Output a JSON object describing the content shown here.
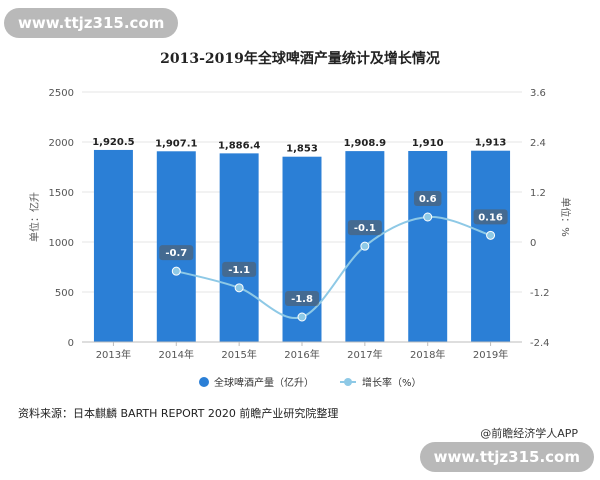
{
  "watermark": {
    "top_text": "www.ttjz315.com",
    "bottom_text": "www.ttjz315.com"
  },
  "footer": {
    "source": "资料来源：日本麒麟 BARTH REPORT 2020 前瞻产业研究院整理",
    "credit": "@前瞻经济学人APP"
  },
  "colors": {
    "bar": "#2b7fd6",
    "line": "#8ec9e6",
    "grid": "#e6e6e6",
    "text": "#555555"
  },
  "chart_data": {
    "type": "bar",
    "title": "2013-2019年全球啤酒产量统计及增长情况",
    "categories": [
      "2013年",
      "2014年",
      "2015年",
      "2016年",
      "2017年",
      "2018年",
      "2019年"
    ],
    "series": [
      {
        "name": "全球啤酒产量（亿升）",
        "type": "bar",
        "axis": "left",
        "values": [
          1920.5,
          1907.1,
          1886.4,
          1853,
          1908.9,
          1910,
          1913
        ],
        "labels": [
          "1,920.5",
          "1,907.1",
          "1,886.4",
          "1,853",
          "1,908.9",
          "1,910",
          "1,913"
        ]
      },
      {
        "name": "增长率（%）",
        "type": "line",
        "axis": "right",
        "values": [
          null,
          -0.7,
          -1.1,
          -1.8,
          -0.1,
          0.6,
          0.16
        ],
        "labels": [
          null,
          "-0.7",
          "-1.1",
          "-1.8",
          "-0.1",
          "0.6",
          "0.16"
        ]
      }
    ],
    "ylabel_left": "单位：亿升",
    "ylabel_right": "单位：%",
    "ylim_left": [
      0,
      2500
    ],
    "yticks_left": [
      "0",
      "500",
      "1000",
      "1500",
      "2000",
      "2500"
    ],
    "ylim_right": [
      -2.4,
      3.6
    ],
    "yticks_right": [
      "-2.4",
      "-1.2",
      "0",
      "1.2",
      "2.4",
      "3.6"
    ],
    "grid": true,
    "legend_position": "bottom"
  }
}
